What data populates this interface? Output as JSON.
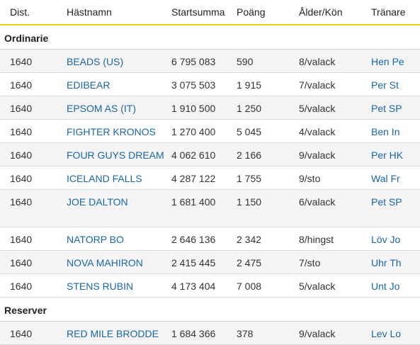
{
  "headers": {
    "dist": "Dist.",
    "name": "Hästnamn",
    "sum": "Startsumma",
    "points": "Poäng",
    "age": "Ålder/Kön",
    "trainer": "Tränare"
  },
  "sections": [
    {
      "title": "Ordinarie",
      "rows": [
        {
          "dist": "1640",
          "name": "BEADS (US)",
          "sum": "6 795 083",
          "points": "590",
          "age": "8/valack",
          "trainer": "Hen Pe"
        },
        {
          "dist": "1640",
          "name": "EDIBEAR",
          "sum": "3 075 503",
          "points": "1 915",
          "age": "7/valack",
          "trainer": "Per St"
        },
        {
          "dist": "1640",
          "name": "EPSOM AS (IT)",
          "sum": "1 910 500",
          "points": "1 250",
          "age": "5/valack",
          "trainer": "Pet SP"
        },
        {
          "dist": "1640",
          "name": "FIGHTER KRONOS",
          "sum": "1 270 400",
          "points": "5 045",
          "age": "4/valack",
          "trainer": "Ben In"
        },
        {
          "dist": "1640",
          "name": "FOUR GUYS DREAM",
          "sum": "4 062 610",
          "points": "2 166",
          "age": "9/valack",
          "trainer": "Per HK"
        },
        {
          "dist": "1640",
          "name": "ICELAND FALLS",
          "sum": "4 287 122",
          "points": "1 755",
          "age": "9/sto",
          "trainer": "Wal Fr"
        },
        {
          "dist": "1640",
          "name": "JOE DALTON",
          "sum": "1 681 400",
          "points": "1 150",
          "age": "6/valack",
          "trainer": "Pet SP"
        },
        {
          "dist": "1640",
          "name": "NATORP BO",
          "sum": "2 646 136",
          "points": "2 342",
          "age": "8/hingst",
          "trainer": "Löv Jo"
        },
        {
          "dist": "1640",
          "name": "NOVA MAHIRON",
          "sum": "2 415 445",
          "points": "2 475",
          "age": "7/sto",
          "trainer": "Uhr Th"
        },
        {
          "dist": "1640",
          "name": "STENS RUBIN",
          "sum": "4 173 404",
          "points": "7 008",
          "age": "5/valack",
          "trainer": "Unt Jo"
        }
      ]
    },
    {
      "title": "Reserver",
      "rows": [
        {
          "dist": "1640",
          "name": "RED MILE BRODDE",
          "sum": "1 684 366",
          "points": "378",
          "age": "9/valack",
          "trainer": "Lev Lo"
        }
      ]
    }
  ]
}
